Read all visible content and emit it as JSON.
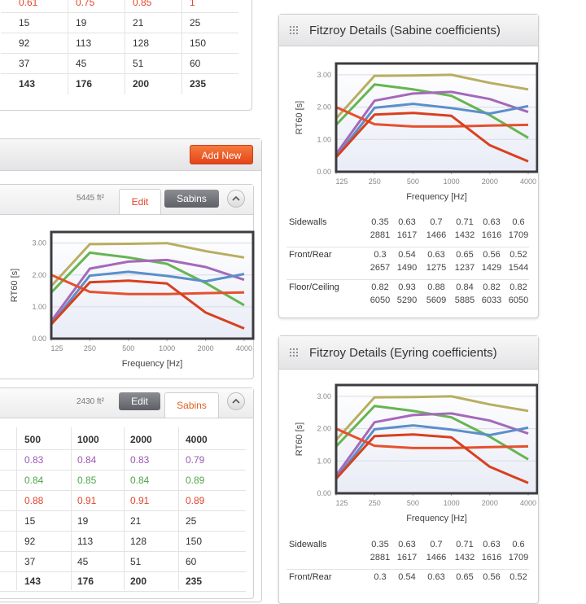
{
  "top_table": {
    "rows": [
      [
        0.61,
        0.75,
        0.85,
        1
      ],
      [
        15,
        19,
        21,
        25
      ],
      [
        92,
        113,
        128,
        150
      ],
      [
        37,
        45,
        51,
        60
      ],
      [
        143,
        176,
        200,
        235
      ]
    ]
  },
  "rooms_panel": {
    "button": "Add New",
    "room_1": {
      "area": "5445 ft²",
      "edit": "Edit",
      "sabins": "Sabins"
    },
    "room_2": {
      "area": "2430 ft²",
      "edit": "Edit",
      "sabins": "Sabins",
      "table": {
        "header": [
          500,
          1000,
          2000,
          4000
        ],
        "rows": [
          [
            0.83,
            0.84,
            0.83,
            0.79
          ],
          [
            0.84,
            0.85,
            0.84,
            0.89
          ],
          [
            0.88,
            0.91,
            0.91,
            0.89
          ],
          [
            15,
            19,
            21,
            25
          ],
          [
            92,
            113,
            128,
            150
          ],
          [
            37,
            45,
            51,
            60
          ],
          [
            143,
            176,
            200,
            235
          ]
        ]
      }
    }
  },
  "details": [
    {
      "title": "Fitzroy Details (Sabine coefficients)",
      "rows": [
        {
          "label": "Sidewalls",
          "coefficients": [
            0.35,
            0.63,
            0.7,
            0.71,
            0.63,
            0.6
          ],
          "sabins": [
            2881,
            1617,
            1466,
            1432,
            1616,
            1709
          ]
        },
        {
          "label": "Front/Rear",
          "coefficients": [
            0.3,
            0.54,
            0.63,
            0.65,
            0.56,
            0.52
          ],
          "sabins": [
            2657,
            1490,
            1275,
            1237,
            1429,
            1544
          ]
        },
        {
          "label": "Floor/Ceiling",
          "coefficients": [
            0.82,
            0.93,
            0.88,
            0.84,
            0.82,
            0.82
          ],
          "sabins": [
            6050,
            5290,
            5609,
            5885,
            6033,
            6050
          ]
        }
      ]
    },
    {
      "title": "Fitzroy Details (Eyring coefficients)",
      "rows": [
        {
          "label": "Sidewalls",
          "coefficients": [
            0.35,
            0.63,
            0.7,
            0.71,
            0.63,
            0.6
          ],
          "sabins": [
            2881,
            1617,
            1466,
            1432,
            1616,
            1709
          ]
        },
        {
          "label": "Front/Rear",
          "coefficients": [
            0.3,
            0.54,
            0.63,
            0.65,
            0.56,
            0.52
          ]
        }
      ]
    }
  ],
  "chart_data": [
    {
      "type": "line",
      "x_label": "Frequency [Hz]",
      "y_label": "RT60 [s]",
      "x_scale": "log",
      "x": [
        125,
        250,
        500,
        1000,
        2000,
        4000
      ],
      "xlim": [
        125,
        4700
      ],
      "xticks": [
        125,
        250,
        500,
        1000,
        2000,
        4000
      ],
      "ylim": [
        0,
        3.35
      ],
      "yticks": [
        {
          "value": 0,
          "label": "0.00"
        },
        {
          "value": 1,
          "label": "1.00"
        },
        {
          "value": 2,
          "label": "2.00"
        },
        {
          "value": 3,
          "label": "3.00"
        }
      ],
      "grid": true,
      "series": [
        {
          "color": "#b8ae62",
          "values": [
            1.65,
            2.97,
            2.98,
            3.0,
            2.75,
            2.55
          ]
        },
        {
          "color": "#66b552",
          "values": [
            1.45,
            2.7,
            2.55,
            2.35,
            1.75,
            1.05
          ]
        },
        {
          "color": "#a469b9",
          "values": [
            0.55,
            2.2,
            2.42,
            2.47,
            2.25,
            1.85
          ]
        },
        {
          "color": "#5b8fc9",
          "values": [
            0.45,
            1.98,
            2.1,
            1.97,
            1.8,
            2.03
          ]
        },
        {
          "color": "#e5502e",
          "values": [
            2.0,
            1.47,
            1.4,
            1.4,
            1.43,
            1.45
          ]
        },
        {
          "color": "#d8401f",
          "values": [
            0.45,
            1.77,
            1.82,
            1.73,
            0.82,
            0.32
          ]
        }
      ]
    },
    {
      "type": "line",
      "x_label": "Frequency [Hz]",
      "y_label": "RT60 [s]",
      "x_scale": "log",
      "x": [
        125,
        250,
        500,
        1000,
        2000,
        4000
      ],
      "xlim": [
        125,
        4700
      ],
      "xticks": [
        125,
        250,
        500,
        1000,
        2000,
        4000
      ],
      "ylim": [
        0,
        3.35
      ],
      "yticks": [
        {
          "value": 0,
          "label": "0.00"
        },
        {
          "value": 1,
          "label": "1.00"
        },
        {
          "value": 2,
          "label": "2.00"
        },
        {
          "value": 3,
          "label": "3.00"
        }
      ],
      "grid": true,
      "series": [
        {
          "color": "#b8ae62",
          "values": [
            1.65,
            2.97,
            2.98,
            3.0,
            2.75,
            2.55
          ]
        },
        {
          "color": "#66b552",
          "values": [
            1.45,
            2.7,
            2.55,
            2.35,
            1.75,
            1.05
          ]
        },
        {
          "color": "#a469b9",
          "values": [
            0.55,
            2.2,
            2.42,
            2.47,
            2.25,
            1.85
          ]
        },
        {
          "color": "#5b8fc9",
          "values": [
            0.45,
            1.98,
            2.1,
            1.97,
            1.8,
            2.03
          ]
        },
        {
          "color": "#e5502e",
          "values": [
            2.0,
            1.47,
            1.4,
            1.4,
            1.43,
            1.45
          ]
        },
        {
          "color": "#d8401f",
          "values": [
            0.45,
            1.77,
            1.82,
            1.73,
            0.82,
            0.32
          ]
        }
      ]
    },
    {
      "type": "line",
      "x_label": "Frequency [Hz]",
      "y_label": "RT60 [s]",
      "x_scale": "log",
      "x": [
        125,
        250,
        500,
        1000,
        2000,
        4000
      ],
      "xlim": [
        125,
        4700
      ],
      "xticks": [
        125,
        250,
        500,
        1000,
        2000,
        4000
      ],
      "ylim": [
        0,
        3.35
      ],
      "yticks": [
        {
          "value": 0,
          "label": "0.00"
        },
        {
          "value": 1,
          "label": "1.00"
        },
        {
          "value": 2,
          "label": "2.00"
        },
        {
          "value": 3,
          "label": "3.00"
        }
      ],
      "grid": true,
      "series": [
        {
          "color": "#b8ae62",
          "values": [
            1.65,
            2.97,
            2.98,
            3.0,
            2.75,
            2.55
          ]
        },
        {
          "color": "#66b552",
          "values": [
            1.45,
            2.7,
            2.55,
            2.35,
            1.75,
            1.05
          ]
        },
        {
          "color": "#a469b9",
          "values": [
            0.55,
            2.2,
            2.42,
            2.47,
            2.25,
            1.85
          ]
        },
        {
          "color": "#5b8fc9",
          "values": [
            0.45,
            1.98,
            2.1,
            1.97,
            1.8,
            2.03
          ]
        },
        {
          "color": "#e5502e",
          "values": [
            2.0,
            1.47,
            1.4,
            1.4,
            1.43,
            1.45
          ]
        },
        {
          "color": "#d8401f",
          "values": [
            0.45,
            1.77,
            1.82,
            1.73,
            0.82,
            0.32
          ]
        }
      ]
    }
  ]
}
